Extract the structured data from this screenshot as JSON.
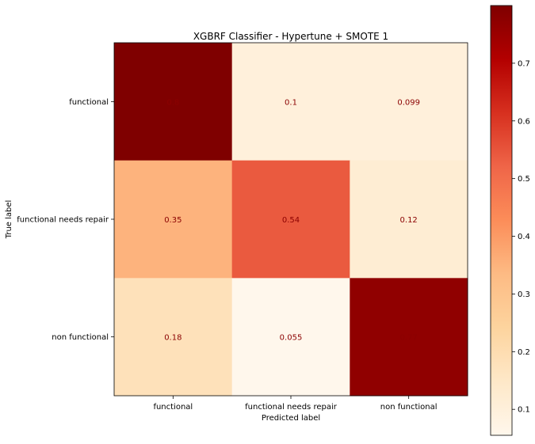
{
  "chart_data": {
    "type": "heatmap",
    "title": "XGBRF Classifier - Hypertune + SMOTE 1",
    "xlabel": "Predicted label",
    "ylabel": "True label",
    "x_categories": [
      "functional",
      "functional needs repair",
      "non functional"
    ],
    "y_categories": [
      "functional",
      "functional needs repair",
      "non functional"
    ],
    "values": [
      [
        0.8,
        0.1,
        0.099
      ],
      [
        0.35,
        0.54,
        0.12
      ],
      [
        0.18,
        0.055,
        0.77
      ]
    ],
    "value_labels": [
      [
        "0.8",
        "0.1",
        "0.099"
      ],
      [
        "0.35",
        "0.54",
        "0.12"
      ],
      [
        "0.18",
        "0.055",
        "0.77"
      ]
    ],
    "colormap": "OrRd",
    "colorbar": {
      "range": [
        0.055,
        0.8
      ],
      "ticks": [
        0.1,
        0.2,
        0.3,
        0.4,
        0.5,
        0.6,
        0.7
      ],
      "tick_labels": [
        "0.1",
        "0.2",
        "0.3",
        "0.4",
        "0.5",
        "0.6",
        "0.7"
      ]
    },
    "text_color": "#8b0000",
    "grid": false
  }
}
